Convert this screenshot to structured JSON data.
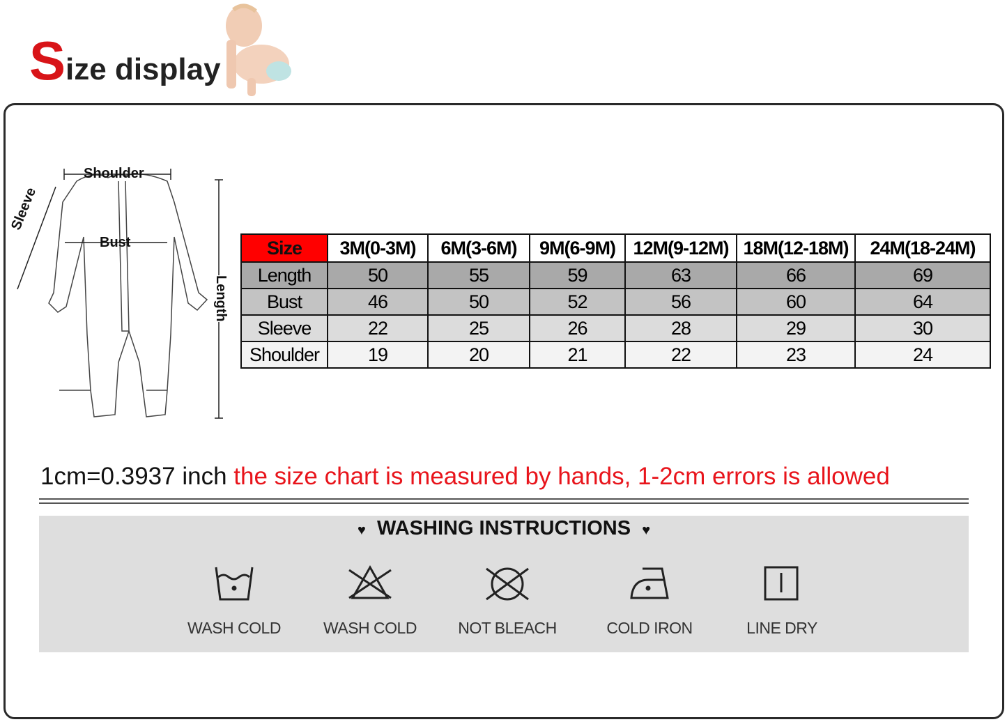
{
  "title": {
    "first_letter": "S",
    "rest": "ize display"
  },
  "diagram": {
    "shoulder": "Shoulder",
    "bust": "Bust",
    "sleeve": "Sleeve",
    "length": "Length"
  },
  "table": {
    "headers": [
      "Size",
      "3M(0-3M)",
      "6M(3-6M)",
      "9M(6-9M)",
      "12M(9-12M)",
      "18M(12-18M)",
      "24M(18-24M)"
    ],
    "rows": [
      {
        "label": "Length",
        "values": [
          "50",
          "55",
          "59",
          "63",
          "66",
          "69"
        ]
      },
      {
        "label": "Bust",
        "values": [
          "46",
          "50",
          "52",
          "56",
          "60",
          "64"
        ]
      },
      {
        "label": "Sleeve",
        "values": [
          "22",
          "25",
          "26",
          "28",
          "29",
          "30"
        ]
      },
      {
        "label": "Shoulder",
        "values": [
          "19",
          "20",
          "21",
          "22",
          "23",
          "24"
        ]
      }
    ]
  },
  "note": {
    "conversion": "1cm=0.3937 inch",
    "warning": "the size chart is measured by hands, 1-2cm errors is allowed"
  },
  "washing": {
    "title": "WASHING INSTRUCTIONS",
    "items": [
      {
        "icon": "wash-tub-icon",
        "label": "WASH COLD"
      },
      {
        "icon": "no-bleach-triangle-icon",
        "label": "WASH COLD"
      },
      {
        "icon": "no-tumble-dry-icon",
        "label": "NOT BLEACH"
      },
      {
        "icon": "iron-icon",
        "label": "COLD IRON"
      },
      {
        "icon": "line-dry-icon",
        "label": "LINE DRY"
      }
    ]
  },
  "colors": {
    "accent": "#e8141b",
    "header_cell": "#ff0000"
  }
}
